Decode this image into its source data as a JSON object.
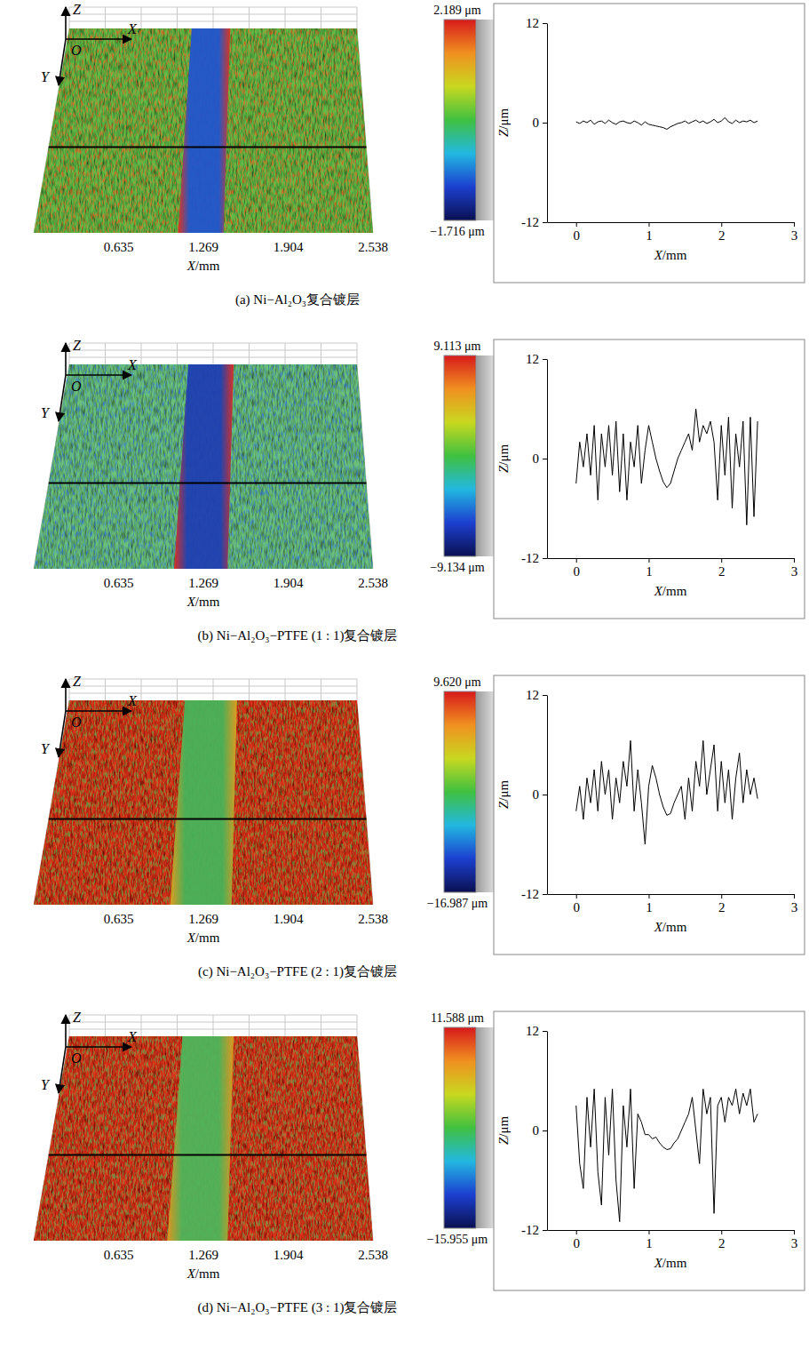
{
  "chart_data": [
    {
      "type": "surface3d",
      "caption": "(a) Ni−Al₂O₃复合镀层",
      "axis_labels": {
        "z": "Z",
        "x": "X",
        "y": "Y",
        "origin": "O"
      },
      "xlabel": "X/mm",
      "xlim": [
        0,
        2.538
      ],
      "xticks": [
        0.635,
        1.269,
        1.904,
        2.538
      ],
      "colorbar": {
        "range": [
          -1.716,
          2.189
        ],
        "ticks": [
          {
            "value": 2.189,
            "label": "2.189 μm"
          },
          {
            "value": -1.716,
            "label": "−1.716 μm"
          }
        ]
      },
      "track": [
        1.08,
        1.42
      ],
      "colors": [
        "#5fba46",
        "#2255cc",
        "#e03020",
        "#e04a20"
      ]
    },
    {
      "type": "line",
      "x": [
        0,
        0.05,
        0.1,
        0.15,
        0.2,
        0.25,
        0.3,
        0.35,
        0.4,
        0.45,
        0.5,
        0.55,
        0.6,
        0.65,
        0.7,
        0.75,
        0.8,
        0.85,
        0.9,
        0.95,
        1,
        1.05,
        1.1,
        1.15,
        1.2,
        1.25,
        1.3,
        1.35,
        1.4,
        1.45,
        1.5,
        1.55,
        1.6,
        1.65,
        1.7,
        1.75,
        1.8,
        1.85,
        1.9,
        1.95,
        2,
        2.05,
        2.1,
        2.15,
        2.2,
        2.25,
        2.3,
        2.35,
        2.4,
        2.45,
        2.5
      ],
      "series": [
        {
          "color": "#000000",
          "values": [
            0.1,
            -0.1,
            0.2,
            0,
            0.3,
            -0.2,
            0.1,
            0.2,
            -0.1,
            0.3,
            0,
            -0.2,
            0.1,
            0.2,
            0,
            -0.1,
            0.2,
            0,
            -0.3,
            0.1,
            -0.2,
            -0.3,
            -0.4,
            -0.5,
            -0.6,
            -0.8,
            -0.5,
            -0.3,
            -0.1,
            0,
            0.2,
            -0.1,
            0.1,
            0.3,
            0,
            0.2,
            -0.1,
            0.1,
            0.4,
            0,
            0.2,
            0.6,
            0.1,
            -0.1,
            0.3,
            0,
            0.2,
            0.1,
            0.3,
            0,
            0.2
          ]
        }
      ],
      "xlim": [
        -0.4,
        3
      ],
      "xticks": [
        0,
        1,
        2,
        3
      ],
      "ylim": [
        -12,
        12
      ],
      "yticks": [
        -12,
        0,
        12
      ],
      "xlabel": "X/mm",
      "ylabel": "Z/μm"
    },
    {
      "type": "surface3d",
      "caption": "(b) Ni−Al₂O₃−PTFE (1 : 1)复合镀层",
      "axis_labels": {
        "z": "Z",
        "x": "X",
        "y": "Y",
        "origin": "O"
      },
      "xlabel": "X/mm",
      "xlim": [
        0,
        2.538
      ],
      "xticks": [
        0.635,
        1.269,
        1.904,
        2.538
      ],
      "colorbar": {
        "range": [
          -9.134,
          9.113
        ],
        "ticks": [
          {
            "value": 9.113,
            "label": "9.113 μm"
          },
          {
            "value": -9.134,
            "label": "−9.134 μm"
          }
        ]
      },
      "track": [
        1.05,
        1.45
      ],
      "colors": [
        "#6cc27a",
        "#1f3fb0",
        "#e02a20",
        "#2a6fd0"
      ]
    },
    {
      "type": "line",
      "x": [
        0,
        0.05,
        0.1,
        0.15,
        0.2,
        0.25,
        0.3,
        0.35,
        0.4,
        0.45,
        0.5,
        0.55,
        0.6,
        0.65,
        0.7,
        0.75,
        0.8,
        0.85,
        0.9,
        0.95,
        1,
        1.05,
        1.1,
        1.15,
        1.2,
        1.25,
        1.3,
        1.35,
        1.4,
        1.45,
        1.5,
        1.55,
        1.6,
        1.65,
        1.7,
        1.75,
        1.8,
        1.85,
        1.9,
        1.95,
        2,
        2.05,
        2.1,
        2.15,
        2.2,
        2.25,
        2.3,
        2.35,
        2.4,
        2.45,
        2.5
      ],
      "series": [
        {
          "color": "#000000",
          "values": [
            -3,
            2,
            -1,
            3,
            -2,
            4,
            -5,
            3,
            -1,
            4,
            -2,
            4.5,
            -4,
            3,
            -5,
            2,
            -1,
            4,
            -3,
            1,
            4,
            2,
            0,
            -1.5,
            -2.8,
            -3.5,
            -3,
            -1.5,
            0,
            1,
            2,
            3,
            1,
            6,
            2,
            4,
            3,
            4.5,
            2,
            -5,
            4,
            -2,
            5,
            -6,
            3,
            -1,
            4.5,
            -8,
            5,
            -7,
            4.5
          ]
        }
      ],
      "xlim": [
        -0.4,
        3
      ],
      "xticks": [
        0,
        1,
        2,
        3
      ],
      "ylim": [
        -12,
        12
      ],
      "yticks": [
        -12,
        0,
        12
      ],
      "xlabel": "X/mm",
      "ylabel": "Z/μm"
    },
    {
      "type": "surface3d",
      "caption": "(c) Ni−Al₂O₃−PTFE (2 : 1)复合镀层",
      "axis_labels": {
        "z": "Z",
        "x": "X",
        "y": "Y",
        "origin": "O"
      },
      "xlabel": "X/mm",
      "xlim": [
        0,
        2.538
      ],
      "xticks": [
        0.635,
        1.269,
        1.904,
        2.538
      ],
      "colorbar": {
        "range": [
          -16.987,
          9.62
        ],
        "ticks": [
          {
            "value": 9.62,
            "label": "9.620 μm"
          },
          {
            "value": -16.987,
            "label": "−16.987 μm"
          }
        ]
      },
      "track": [
        1.02,
        1.48
      ],
      "colors": [
        "#d8321e",
        "#48b35a",
        "#e0a020",
        "#2fa04a"
      ]
    },
    {
      "type": "line",
      "x": [
        0,
        0.05,
        0.1,
        0.15,
        0.2,
        0.25,
        0.3,
        0.35,
        0.4,
        0.45,
        0.5,
        0.55,
        0.6,
        0.65,
        0.7,
        0.75,
        0.8,
        0.85,
        0.9,
        0.95,
        1,
        1.05,
        1.1,
        1.15,
        1.2,
        1.25,
        1.3,
        1.35,
        1.4,
        1.45,
        1.5,
        1.55,
        1.6,
        1.65,
        1.7,
        1.75,
        1.8,
        1.85,
        1.9,
        1.95,
        2,
        2.05,
        2.1,
        2.15,
        2.2,
        2.25,
        2.3,
        2.35,
        2.4,
        2.45,
        2.5
      ],
      "series": [
        {
          "color": "#000000",
          "values": [
            -2,
            1,
            -3,
            2,
            -1,
            3,
            -2,
            4,
            0,
            3,
            -3,
            2,
            -1,
            4,
            1,
            6.5,
            -2,
            3,
            -1,
            -6,
            1,
            3.5,
            2,
            0,
            -1.5,
            -2.5,
            -2.3,
            -1,
            0,
            1,
            -3,
            2,
            -2,
            4,
            1,
            6.5,
            0,
            3,
            6,
            -2,
            4,
            -1,
            3,
            -3,
            2,
            5,
            -1,
            3,
            0,
            2,
            -0.5
          ]
        }
      ],
      "xlim": [
        -0.4,
        3
      ],
      "xticks": [
        0,
        1,
        2,
        3
      ],
      "ylim": [
        -12,
        12
      ],
      "yticks": [
        -12,
        0,
        12
      ],
      "xlabel": "X/mm",
      "ylabel": "Z/μm"
    },
    {
      "type": "surface3d",
      "caption": "(d) Ni−Al₂O₃−PTFE (3 : 1)复合镀层",
      "axis_labels": {
        "z": "Z",
        "x": "X",
        "y": "Y",
        "origin": "O"
      },
      "xlabel": "X/mm",
      "xlim": [
        0,
        2.538
      ],
      "xticks": [
        0.635,
        1.269,
        1.904,
        2.538
      ],
      "colorbar": {
        "range": [
          -15.955,
          11.588
        ],
        "ticks": [
          {
            "value": 11.588,
            "label": "11.588 μm"
          },
          {
            "value": -15.955,
            "label": "−15.955 μm"
          }
        ]
      },
      "track": [
        1.0,
        1.45
      ],
      "colors": [
        "#d8301c",
        "#4fb55a",
        "#e09a20",
        "#3aa050"
      ]
    },
    {
      "type": "line",
      "x": [
        0,
        0.05,
        0.1,
        0.15,
        0.2,
        0.25,
        0.3,
        0.35,
        0.4,
        0.45,
        0.5,
        0.55,
        0.6,
        0.65,
        0.7,
        0.75,
        0.8,
        0.85,
        0.9,
        0.95,
        1,
        1.05,
        1.1,
        1.15,
        1.2,
        1.25,
        1.3,
        1.35,
        1.4,
        1.45,
        1.5,
        1.55,
        1.6,
        1.65,
        1.7,
        1.75,
        1.8,
        1.85,
        1.9,
        1.95,
        2,
        2.05,
        2.1,
        2.15,
        2.2,
        2.25,
        2.3,
        2.35,
        2.4,
        2.45,
        2.5
      ],
      "series": [
        {
          "color": "#000000",
          "values": [
            3,
            -4,
            -7,
            4,
            -2,
            5,
            -5,
            -9,
            4,
            -3,
            5,
            -6,
            -11,
            3,
            -2,
            5,
            -7,
            2,
            1,
            -0.5,
            -0.5,
            -1,
            -0.8,
            -1.5,
            -2,
            -2.3,
            -2.2,
            -1.5,
            -1,
            0,
            1,
            2,
            4,
            0,
            -4,
            5,
            2,
            4,
            -10,
            3,
            4,
            1,
            4,
            3,
            5,
            2,
            4.5,
            3,
            5,
            1,
            2
          ]
        }
      ],
      "xlim": [
        -0.4,
        3
      ],
      "xticks": [
        0,
        1,
        2,
        3
      ],
      "ylim": [
        -12,
        12
      ],
      "yticks": [
        -12,
        0,
        12
      ],
      "xlabel": "X/mm",
      "ylabel": "Z/μm"
    }
  ]
}
